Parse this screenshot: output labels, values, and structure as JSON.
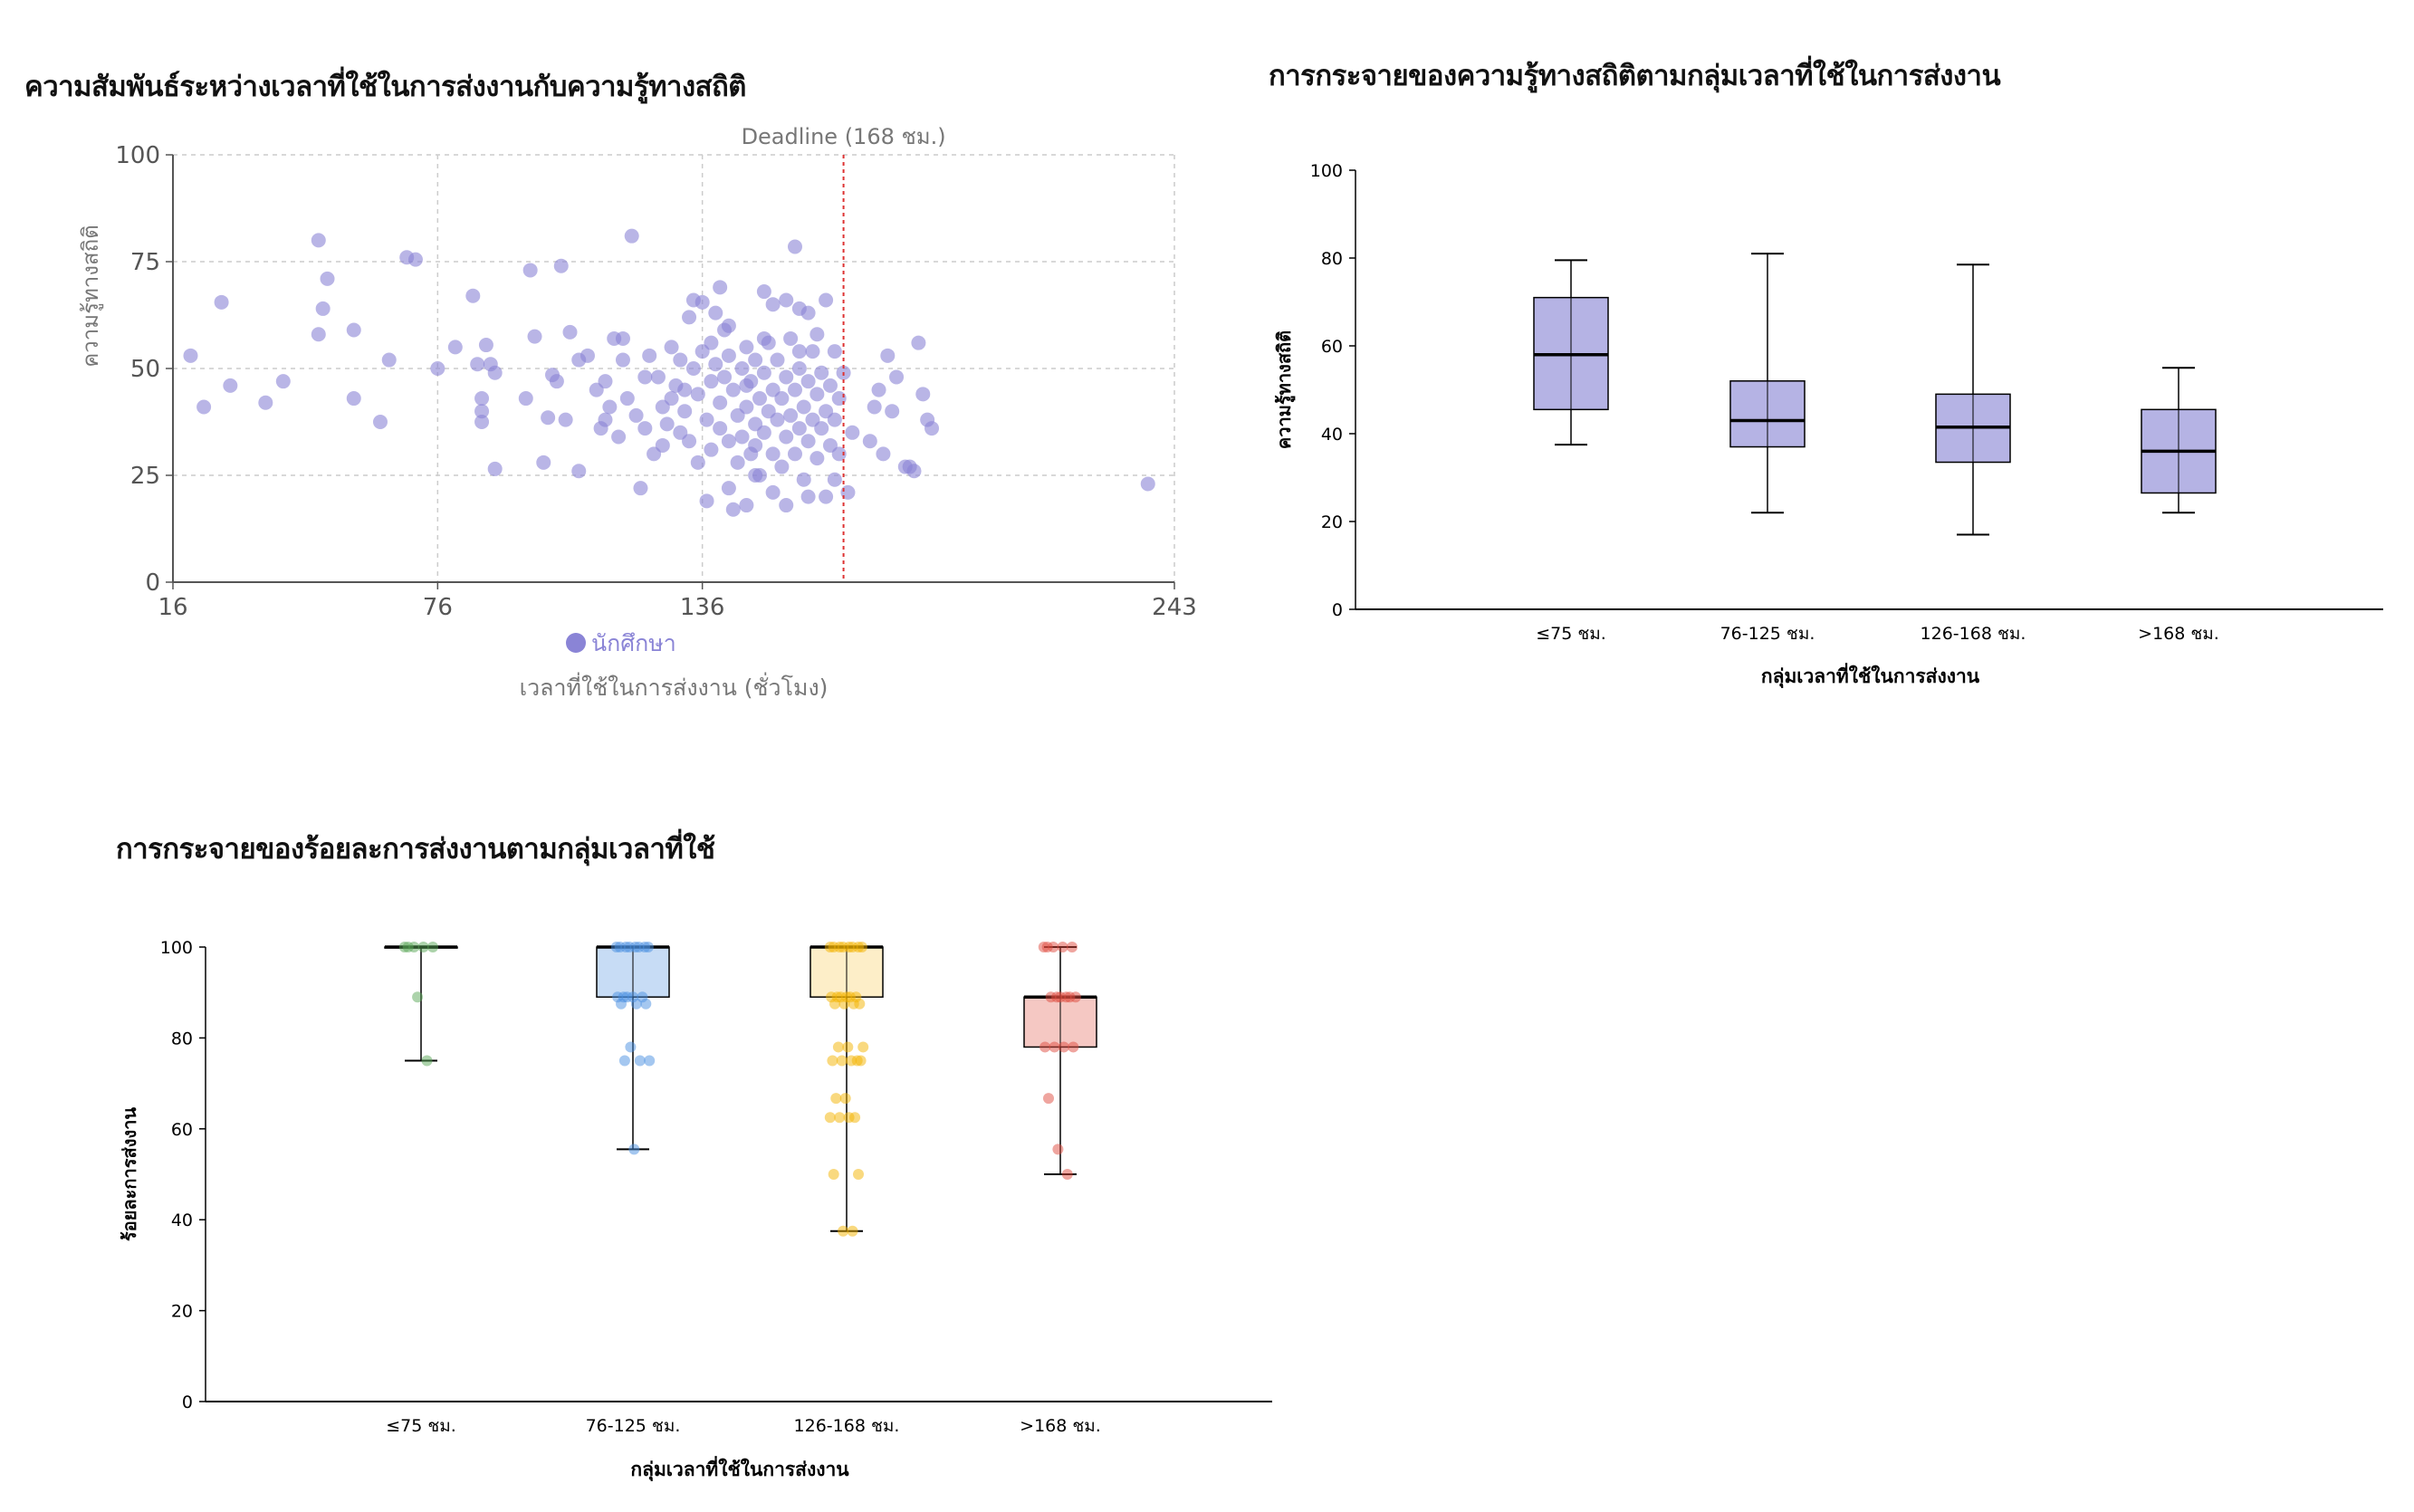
{
  "chart_data": [
    {
      "type": "scatter",
      "title": "ความสัมพันธ์ระหว่างเวลาที่ใช้ในการส่งงานกับความรู้ทางสถิติ",
      "xlabel": "เวลาที่ใช้ในการส่งงาน (ชั่วโมง)",
      "ylabel": "ความรู้ทางสถิติ",
      "xlim": [
        16,
        243
      ],
      "ylim": [
        0,
        100
      ],
      "xticks": [
        "16",
        "76",
        "136",
        "243"
      ],
      "yticks": [
        "0",
        "25",
        "50",
        "75",
        "100"
      ],
      "grid": true,
      "legend": {
        "label": "นักศึกษา",
        "placement": "bottom-center"
      },
      "reference_line": {
        "x": 168,
        "label": "Deadline (168 ชม.)"
      },
      "color": "#8a84d6",
      "points": [
        [
          20,
          53
        ],
        [
          23,
          41
        ],
        [
          27,
          65.5
        ],
        [
          29,
          46
        ],
        [
          37,
          42
        ],
        [
          41,
          47
        ],
        [
          49,
          58
        ],
        [
          50,
          64
        ],
        [
          49,
          80
        ],
        [
          51,
          71
        ],
        [
          57,
          43
        ],
        [
          57,
          59
        ],
        [
          63,
          37.5
        ],
        [
          65,
          52
        ],
        [
          69,
          76
        ],
        [
          71,
          75.5
        ],
        [
          76,
          50
        ],
        [
          80,
          55
        ],
        [
          84,
          67
        ],
        [
          85,
          51
        ],
        [
          86,
          43
        ],
        [
          86,
          40
        ],
        [
          86,
          37.5
        ],
        [
          87,
          55.5
        ],
        [
          88,
          51
        ],
        [
          89,
          49
        ],
        [
          89,
          26.5
        ],
        [
          96,
          43
        ],
        [
          97,
          73
        ],
        [
          98,
          57.5
        ],
        [
          100,
          28
        ],
        [
          101,
          38.5
        ],
        [
          102,
          48.5
        ],
        [
          103,
          47
        ],
        [
          104,
          74
        ],
        [
          105,
          38
        ],
        [
          106,
          58.5
        ],
        [
          108,
          26
        ],
        [
          108,
          52
        ],
        [
          110,
          53
        ],
        [
          113,
          36
        ],
        [
          114,
          47
        ],
        [
          115,
          41
        ],
        [
          116,
          57
        ],
        [
          118,
          57
        ],
        [
          118,
          52
        ],
        [
          120,
          81
        ],
        [
          122,
          22
        ],
        [
          123,
          48
        ],
        [
          125,
          30
        ],
        [
          127,
          32
        ],
        [
          129,
          43
        ],
        [
          132,
          45
        ],
        [
          133,
          62
        ],
        [
          134,
          66
        ],
        [
          136,
          65.5
        ],
        [
          138,
          56
        ],
        [
          140,
          69
        ],
        [
          142,
          22
        ],
        [
          143,
          17
        ],
        [
          146,
          46
        ],
        [
          148,
          32
        ],
        [
          150,
          68
        ],
        [
          152,
          65
        ],
        [
          155,
          66
        ],
        [
          157,
          78.5
        ],
        [
          158,
          64
        ],
        [
          160,
          63
        ],
        [
          162,
          58
        ],
        [
          164,
          66
        ],
        [
          166,
          54
        ],
        [
          168,
          49
        ],
        [
          169,
          21
        ],
        [
          170,
          35
        ],
        [
          174,
          33
        ],
        [
          175,
          41
        ],
        [
          176,
          45
        ],
        [
          177,
          30
        ],
        [
          178,
          53
        ],
        [
          179,
          40
        ],
        [
          180,
          48
        ],
        [
          182,
          27
        ],
        [
          183,
          27
        ],
        [
          184,
          26
        ],
        [
          185,
          56
        ],
        [
          186,
          44
        ],
        [
          187,
          38
        ],
        [
          188,
          36
        ],
        [
          237,
          23
        ],
        [
          112,
          45
        ],
        [
          114,
          38
        ],
        [
          117,
          34
        ],
        [
          119,
          43
        ],
        [
          121,
          39
        ],
        [
          123,
          36
        ],
        [
          124,
          53
        ],
        [
          126,
          48
        ],
        [
          127,
          41
        ],
        [
          128,
          37
        ],
        [
          129,
          55
        ],
        [
          130,
          46
        ],
        [
          131,
          35
        ],
        [
          131,
          52
        ],
        [
          132,
          40
        ],
        [
          133,
          33
        ],
        [
          134,
          50
        ],
        [
          135,
          44
        ],
        [
          135,
          28
        ],
        [
          136,
          54
        ],
        [
          137,
          38
        ],
        [
          138,
          47
        ],
        [
          138,
          31
        ],
        [
          139,
          51
        ],
        [
          140,
          42
        ],
        [
          140,
          36
        ],
        [
          141,
          59
        ],
        [
          141,
          48
        ],
        [
          142,
          33
        ],
        [
          142,
          53
        ],
        [
          143,
          45
        ],
        [
          144,
          39
        ],
        [
          144,
          28
        ],
        [
          145,
          50
        ],
        [
          145,
          34
        ],
        [
          146,
          55
        ],
        [
          146,
          41
        ],
        [
          147,
          30
        ],
        [
          147,
          47
        ],
        [
          148,
          37
        ],
        [
          148,
          52
        ],
        [
          149,
          43
        ],
        [
          149,
          25
        ],
        [
          150,
          49
        ],
        [
          150,
          35
        ],
        [
          151,
          40
        ],
        [
          151,
          56
        ],
        [
          152,
          45
        ],
        [
          152,
          30
        ],
        [
          153,
          38
        ],
        [
          153,
          52
        ],
        [
          154,
          43
        ],
        [
          154,
          27
        ],
        [
          155,
          48
        ],
        [
          155,
          34
        ],
        [
          156,
          39
        ],
        [
          156,
          57
        ],
        [
          157,
          45
        ],
        [
          157,
          30
        ],
        [
          158,
          50
        ],
        [
          158,
          36
        ],
        [
          159,
          41
        ],
        [
          159,
          24
        ],
        [
          160,
          47
        ],
        [
          160,
          33
        ],
        [
          161,
          38
        ],
        [
          161,
          54
        ],
        [
          162,
          44
        ],
        [
          162,
          29
        ],
        [
          163,
          49
        ],
        [
          163,
          36
        ],
        [
          164,
          40
        ],
        [
          164,
          20
        ],
        [
          165,
          46
        ],
        [
          165,
          32
        ],
        [
          166,
          38
        ],
        [
          166,
          24
        ],
        [
          167,
          43
        ],
        [
          167,
          30
        ],
        [
          137,
          19
        ],
        [
          146,
          18
        ],
        [
          152,
          21
        ],
        [
          155,
          18
        ],
        [
          160,
          20
        ],
        [
          142,
          60
        ],
        [
          139,
          63
        ],
        [
          150,
          57
        ],
        [
          158,
          54
        ],
        [
          148,
          25
        ]
      ]
    },
    {
      "type": "box",
      "title": "การกระจายของความรู้ทางสถิติตามกลุ่มเวลาที่ใช้ในการส่งงาน",
      "xlabel": "กลุ่มเวลาที่ใช้ในการส่งงาน",
      "ylabel": "ความรู้ทางสถิติ",
      "ylim": [
        0,
        100
      ],
      "yticks": [
        "0",
        "20",
        "40",
        "60",
        "80",
        "100"
      ],
      "categories": [
        "≤75 ชม.",
        "76-125 ชม.",
        "126-168 ชม.",
        ">168 ชม."
      ],
      "color": "#b5b3e4",
      "boxes": [
        {
          "min": 37.5,
          "q1": 45.5,
          "median": 58,
          "q3": 71,
          "max": 79.5
        },
        {
          "min": 22,
          "q1": 37,
          "median": 43,
          "q3": 52,
          "max": 81
        },
        {
          "min": 17,
          "q1": 33.5,
          "median": 41.5,
          "q3": 49,
          "max": 78.5
        },
        {
          "min": 22,
          "q1": 26.5,
          "median": 36,
          "q3": 45.5,
          "max": 55
        }
      ]
    },
    {
      "type": "box",
      "title": "การกระจายของร้อยละการส่งงานตามกลุ่มเวลาที่ใช้",
      "xlabel": "กลุ่มเวลาที่ใช้ในการส่งงาน",
      "ylabel": "ร้อยละการส่งงาน",
      "ylim": [
        0,
        100
      ],
      "yticks": [
        "0",
        "20",
        "40",
        "60",
        "80",
        "100"
      ],
      "categories": [
        "≤75 ชม.",
        "76-125 ชม.",
        "126-168 ชม.",
        ">168 ชม."
      ],
      "colors": [
        "#5aa857",
        "#4a90e2",
        "#f4b400",
        "#e04b3f"
      ],
      "fills": [
        "#dcefdc",
        "#c7dcf5",
        "#fdeec8",
        "#f5c8c3"
      ],
      "boxes": [
        {
          "min": 75,
          "q1": 100,
          "median": 100,
          "q3": 100,
          "max": 100,
          "points": [
            100,
            100,
            100,
            100,
            100,
            89,
            75
          ]
        },
        {
          "min": 55.5,
          "q1": 89,
          "median": 100,
          "q3": 100,
          "max": 100,
          "points": [
            100,
            100,
            100,
            100,
            100,
            100,
            100,
            100,
            89,
            89,
            89,
            89,
            89,
            87.5,
            87.5,
            87.5,
            78,
            75,
            75,
            75,
            55.5
          ]
        },
        {
          "min": 37.5,
          "q1": 89,
          "median": 100,
          "q3": 100,
          "max": 100,
          "points": [
            100,
            100,
            100,
            100,
            100,
            100,
            100,
            100,
            89,
            89,
            89,
            89,
            89,
            89,
            87.5,
            87.5,
            87.5,
            87.5,
            78,
            78,
            78,
            75,
            75,
            75,
            75,
            75,
            66.7,
            66.7,
            62.5,
            62.5,
            62.5,
            62.5,
            50,
            50,
            37.5,
            37.5
          ]
        },
        {
          "min": 50,
          "q1": 78,
          "median": 89,
          "q3": 89,
          "max": 100,
          "points": [
            100,
            100,
            100,
            100,
            100,
            89,
            89,
            89,
            89,
            89,
            89,
            78,
            78,
            78,
            78,
            66.7,
            55.5,
            50
          ]
        }
      ]
    }
  ]
}
